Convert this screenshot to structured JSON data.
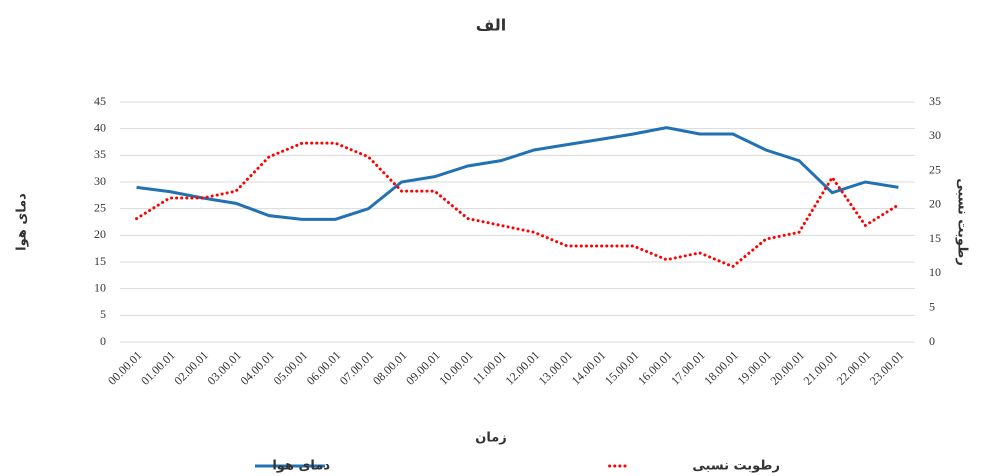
{
  "chart_data": {
    "type": "line",
    "title": "الف",
    "x_label": "زمان",
    "y_label": "دمای هوا",
    "y2_label": "رطوبت نسبی",
    "categories": [
      "00.00.01",
      "01.00.01",
      "02.00.01",
      "03.00.01",
      "04.00.01",
      "05.00.01",
      "06.00.01",
      "07.00.01",
      "08.00.01",
      "09.00.01",
      "10.00.01",
      "11.00.01",
      "12.00.01",
      "13.00.01",
      "14.00.01",
      "15.00.01",
      "16.00.01",
      "17.00.01",
      "18.00.01",
      "19.00.01",
      "20.00.01",
      "21.00.01",
      "22.00.01",
      "23.00.01"
    ],
    "series": [
      {
        "name": "دمای هوا",
        "color": "#2271b3",
        "line_style": "solid",
        "axis": "y",
        "values": [
          29,
          28.2,
          27,
          26,
          23.7,
          23,
          23,
          25,
          30,
          31,
          33,
          34,
          36,
          37,
          38,
          39,
          40.2,
          39,
          39,
          36,
          34,
          28,
          30,
          29
        ]
      },
      {
        "name": "رطوبت نسبی",
        "color": "#ff0000",
        "line_style": "dotted",
        "axis": "y2",
        "values": [
          18,
          21,
          21,
          22,
          27,
          29,
          29,
          27,
          22,
          22,
          18,
          17,
          16,
          14,
          14,
          14,
          12,
          13,
          11,
          15,
          16,
          24,
          17,
          20
        ]
      }
    ],
    "ylim": [
      0,
      45
    ],
    "yticks": [
      0,
      5,
      10,
      15,
      20,
      25,
      30,
      35,
      40,
      45
    ],
    "y2lim": [
      0,
      35
    ],
    "y2ticks": [
      0,
      5,
      10,
      15,
      20,
      25,
      30,
      35
    ],
    "grid": true,
    "legend": "bottom"
  }
}
